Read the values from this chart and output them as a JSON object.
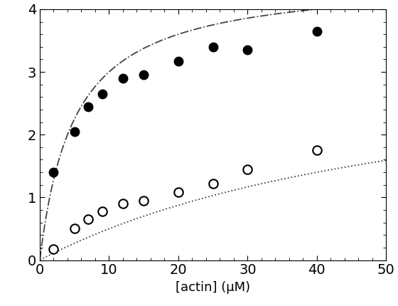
{
  "title": "",
  "xlabel": "[actin] (μM)",
  "ylabel": "",
  "xlim": [
    0,
    50
  ],
  "ylim": [
    0,
    4
  ],
  "xticks": [
    0,
    10,
    20,
    30,
    40,
    50
  ],
  "yticks": [
    0,
    1,
    2,
    3,
    4
  ],
  "filled_x": [
    2,
    5,
    7,
    9,
    12,
    15,
    20,
    25,
    30,
    40
  ],
  "filled_y": [
    1.4,
    2.05,
    2.45,
    2.65,
    2.9,
    2.95,
    3.17,
    3.4,
    3.35,
    3.65
  ],
  "open_x": [
    2,
    5,
    7,
    9,
    12,
    15,
    20,
    25,
    30,
    40
  ],
  "open_y": [
    0.18,
    0.5,
    0.65,
    0.78,
    0.9,
    0.95,
    1.08,
    1.22,
    1.45,
    1.75
  ],
  "filled_Vmax": 4.5,
  "filled_Km": 5.0,
  "filled_basal": 0.0,
  "open_Vmax": 3.5,
  "open_Km": 60.0,
  "open_basal": 0.0,
  "dot_color": "#444444",
  "background_color": "#ffffff",
  "marker_size": 9,
  "line_width": 1.3,
  "tick_labelsize": 14,
  "xlabel_fontsize": 13
}
